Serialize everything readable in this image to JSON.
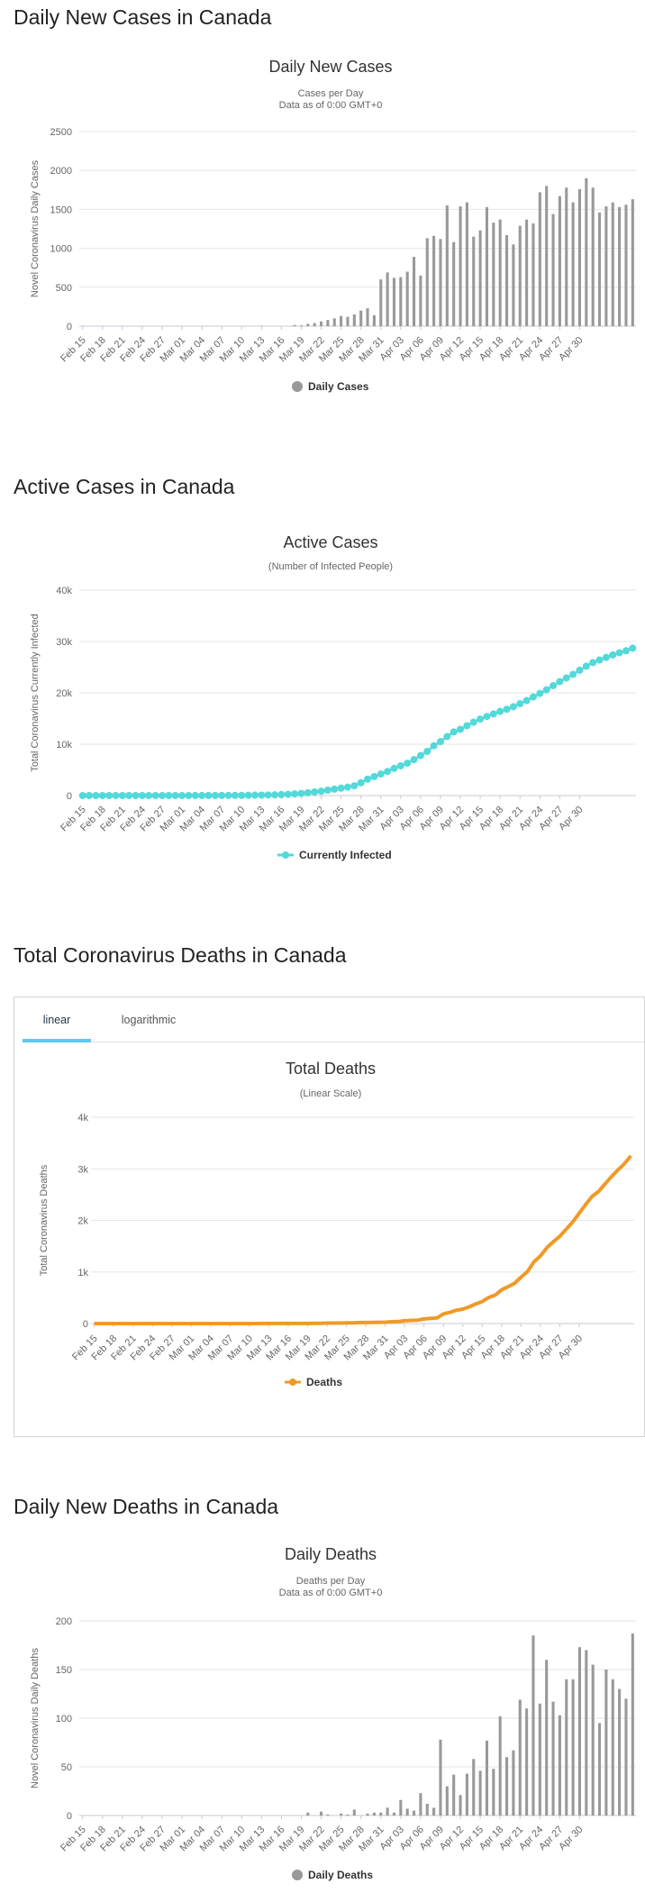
{
  "headings": {
    "daily_cases": "Daily New Cases in Canada",
    "active_cases": "Active Cases in Canada",
    "total_deaths": "Total Coronavirus Deaths in Canada",
    "daily_deaths": "Daily New Deaths in Canada"
  },
  "tabs": {
    "linear": "linear",
    "logarithmic": "logarithmic",
    "active": "linear"
  },
  "colors": {
    "bar": "#999999",
    "active_line": "#53d9d9",
    "deaths_line": "#ef9a27",
    "grid": "#e6e6e6",
    "tab_underline": "#5ec8f0"
  },
  "chart_data": [
    {
      "type": "bar",
      "title": "Daily New Cases",
      "subtitle": [
        "Cases per Day",
        "Data as of 0:00 GMT+0"
      ],
      "ylabel": "Novel Coronavirus Daily Cases",
      "ylim": [
        0,
        2500
      ],
      "yticks": [
        "0",
        "500",
        "1000",
        "1500",
        "2000",
        "2500"
      ],
      "ytick_values": [
        0,
        500,
        1000,
        1500,
        2000,
        2500
      ],
      "x_tick_labels": [
        "Feb 15",
        "Feb 18",
        "Feb 21",
        "Feb 24",
        "Feb 27",
        "Mar 01",
        "Mar 04",
        "Mar 07",
        "Mar 10",
        "Mar 13",
        "Mar 16",
        "Mar 19",
        "Mar 22",
        "Mar 25",
        "Mar 28",
        "Mar 31",
        "Apr 03",
        "Apr 06",
        "Apr 09",
        "Apr 12",
        "Apr 15",
        "Apr 18",
        "Apr 21",
        "Apr 24",
        "Apr 27",
        "Apr 30"
      ],
      "x_start": "Feb 15",
      "series": [
        {
          "name": "Daily Cases",
          "values": [
            0,
            0,
            0,
            0,
            0,
            0,
            0,
            0,
            0,
            0,
            0,
            0,
            0,
            0,
            0,
            0,
            0,
            0,
            0,
            0,
            0,
            0,
            0,
            0,
            0,
            0,
            0,
            5,
            0,
            0,
            0,
            0,
            15,
            10,
            30,
            40,
            60,
            80,
            100,
            130,
            120,
            150,
            200,
            230,
            140,
            600,
            690,
            620,
            630,
            700,
            890,
            650,
            1130,
            1160,
            1120,
            1550,
            1080,
            1540,
            1590,
            1150,
            1230,
            1530,
            1330,
            1370,
            1170,
            1050,
            1290,
            1370,
            1320,
            1720,
            1800,
            1440,
            1670,
            1780,
            1590,
            1760,
            1900,
            1780,
            1460,
            1540,
            1590,
            1530,
            1560,
            1630
          ]
        }
      ]
    },
    {
      "type": "line",
      "title": "Active Cases",
      "subtitle": [
        "(Number of Infected People)"
      ],
      "ylabel": "Total Coronavirus Currently Infected",
      "ylim": [
        0,
        40000
      ],
      "yticks": [
        "0",
        "10k",
        "20k",
        "30k",
        "40k"
      ],
      "ytick_values": [
        0,
        10000,
        20000,
        30000,
        40000
      ],
      "x_tick_labels": [
        "Feb 15",
        "Feb 18",
        "Feb 21",
        "Feb 24",
        "Feb 27",
        "Mar 01",
        "Mar 04",
        "Mar 07",
        "Mar 10",
        "Mar 13",
        "Mar 16",
        "Mar 19",
        "Mar 22",
        "Mar 25",
        "Mar 28",
        "Mar 31",
        "Apr 03",
        "Apr 06",
        "Apr 09",
        "Apr 12",
        "Apr 15",
        "Apr 18",
        "Apr 21",
        "Apr 24",
        "Apr 27",
        "Apr 30"
      ],
      "x_start": "Feb 15",
      "markers": true,
      "series": [
        {
          "name": "Currently Infected",
          "values": [
            7,
            7,
            7,
            7,
            7,
            7,
            7,
            7,
            7,
            7,
            7,
            7,
            7,
            8,
            8,
            9,
            10,
            12,
            14,
            18,
            22,
            26,
            30,
            35,
            45,
            60,
            80,
            95,
            120,
            150,
            200,
            250,
            330,
            420,
            550,
            700,
            850,
            1050,
            1250,
            1450,
            1650,
            1900,
            2500,
            3200,
            3700,
            4200,
            4700,
            5300,
            5800,
            6300,
            7000,
            7800,
            8600,
            9700,
            10500,
            11500,
            12400,
            12900,
            13600,
            14300,
            14900,
            15400,
            15900,
            16400,
            16800,
            17300,
            17900,
            18500,
            19200,
            19900,
            20600,
            21400,
            22200,
            22900,
            23600,
            24400,
            25200,
            25900,
            26400,
            26900,
            27400,
            27800,
            28200,
            28700
          ]
        }
      ]
    },
    {
      "type": "line",
      "title": "Total Deaths",
      "subtitle": [
        "(Linear Scale)"
      ],
      "ylabel": "Total Coronavirus Deaths",
      "ylim": [
        0,
        4000
      ],
      "yticks": [
        "0",
        "1k",
        "2k",
        "3k",
        "4k"
      ],
      "ytick_values": [
        0,
        1000,
        2000,
        3000,
        4000
      ],
      "x_tick_labels": [
        "Feb 15",
        "Feb 18",
        "Feb 21",
        "Feb 24",
        "Feb 27",
        "Mar 01",
        "Mar 04",
        "Mar 07",
        "Mar 10",
        "Mar 13",
        "Mar 16",
        "Mar 19",
        "Mar 22",
        "Mar 25",
        "Mar 28",
        "Mar 31",
        "Apr 03",
        "Apr 06",
        "Apr 09",
        "Apr 12",
        "Apr 15",
        "Apr 18",
        "Apr 21",
        "Apr 24",
        "Apr 27",
        "Apr 30"
      ],
      "x_start": "Feb 15",
      "markers": false,
      "series": [
        {
          "name": "Deaths",
          "values": [
            0,
            0,
            0,
            0,
            0,
            0,
            0,
            0,
            0,
            0,
            0,
            0,
            0,
            0,
            0,
            0,
            0,
            0,
            0,
            0,
            0,
            0,
            0,
            0,
            0,
            0,
            1,
            1,
            1,
            1,
            1,
            1,
            1,
            1,
            4,
            4,
            8,
            9,
            10,
            12,
            13,
            19,
            19,
            21,
            24,
            27,
            35,
            38,
            54,
            61,
            66,
            89,
            101,
            109,
            187,
            217,
            259,
            280,
            323,
            381,
            427,
            504,
            552,
            654,
            714,
            781,
            900,
            1010,
            1195,
            1310,
            1470,
            1587,
            1690,
            1830,
            1970,
            2140,
            2310,
            2465,
            2560,
            2710,
            2850,
            2980,
            3100,
            3250
          ]
        }
      ]
    },
    {
      "type": "bar",
      "title": "Daily Deaths",
      "subtitle": [
        "Deaths per Day",
        "Data as of 0:00 GMT+0"
      ],
      "ylabel": "Novel Coronavirus Daily Deaths",
      "ylim": [
        0,
        200
      ],
      "yticks": [
        "0",
        "50",
        "100",
        "150",
        "200"
      ],
      "ytick_values": [
        0,
        50,
        100,
        150,
        200
      ],
      "x_tick_labels": [
        "Feb 15",
        "Feb 18",
        "Feb 21",
        "Feb 24",
        "Feb 27",
        "Mar 01",
        "Mar 04",
        "Mar 07",
        "Mar 10",
        "Mar 13",
        "Mar 16",
        "Mar 19",
        "Mar 22",
        "Mar 25",
        "Mar 28",
        "Mar 31",
        "Apr 03",
        "Apr 06",
        "Apr 09",
        "Apr 12",
        "Apr 15",
        "Apr 18",
        "Apr 21",
        "Apr 24",
        "Apr 27",
        "Apr 30"
      ],
      "x_start": "Feb 15",
      "series": [
        {
          "name": "Daily Deaths",
          "values": [
            0,
            0,
            0,
            0,
            0,
            0,
            0,
            0,
            0,
            0,
            0,
            0,
            0,
            0,
            0,
            0,
            0,
            0,
            0,
            0,
            0,
            0,
            0,
            0,
            0,
            0,
            0,
            0,
            0,
            0,
            0,
            0,
            0,
            0,
            3,
            0,
            4,
            1,
            0,
            2,
            1,
            6,
            0,
            2,
            3,
            3,
            8,
            3,
            16,
            7,
            5,
            23,
            12,
            8,
            78,
            30,
            42,
            21,
            43,
            58,
            46,
            77,
            48,
            102,
            60,
            67,
            119,
            110,
            185,
            115,
            160,
            117,
            103,
            140,
            140,
            173,
            170,
            155,
            95,
            150,
            140,
            130,
            120,
            187
          ]
        }
      ]
    }
  ]
}
